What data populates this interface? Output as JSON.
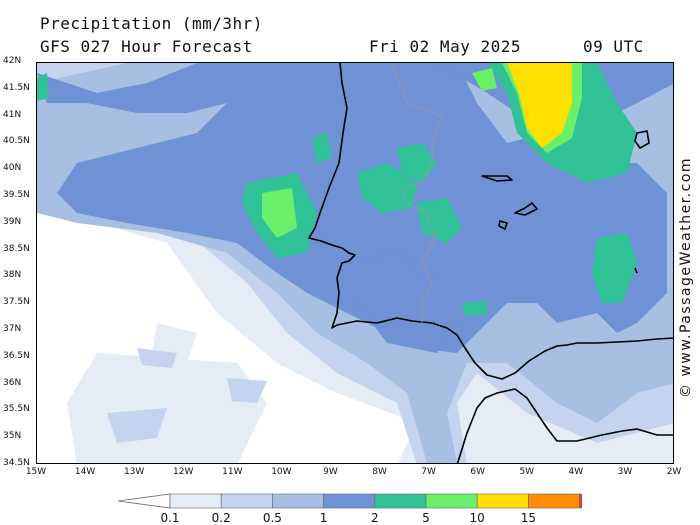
{
  "header": {
    "title": "Precipitation (mm/3hr)",
    "subtitle": "GFS 027 Hour Forecast",
    "date": "Fri 02 May 2025",
    "time": "09 UTC"
  },
  "credit": "© www.PassageWeather.com",
  "axes": {
    "latitudes": [
      "42N",
      "41.5N",
      "41N",
      "40.5N",
      "40N",
      "39.5N",
      "39N",
      "38.5N",
      "38N",
      "37.5N",
      "37N",
      "36.5N",
      "36N",
      "35.5N",
      "35N",
      "34.5N"
    ],
    "longitudes": [
      "15W",
      "14W",
      "13W",
      "12W",
      "11W",
      "10W",
      "9W",
      "8W",
      "7W",
      "6W",
      "5W",
      "4W",
      "3W",
      "2W"
    ]
  },
  "legend": {
    "labels": [
      "0.1",
      "0.2",
      "0.5",
      "1",
      "2",
      "5",
      "10",
      "15"
    ],
    "colors": [
      "#e6ecf6",
      "#c4d4ee",
      "#a6bfe2",
      "#6f91d6",
      "#30c296",
      "#69ef69",
      "#ffdf00",
      "#ff8c00",
      "#e63c3c"
    ]
  },
  "map": {
    "region": "Iberian Peninsula and northwest Africa",
    "lat_range": [
      34.5,
      42
    ],
    "lon_range": [
      -15,
      -2
    ]
  }
}
